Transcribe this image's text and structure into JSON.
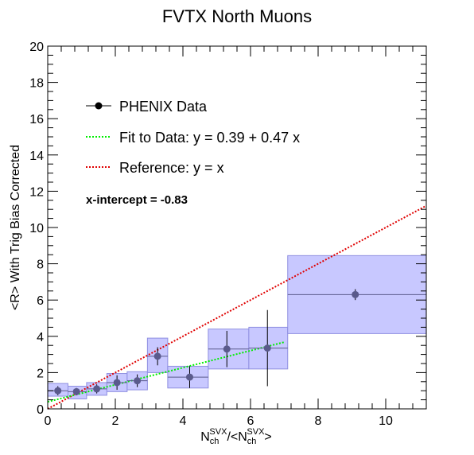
{
  "chart_data": {
    "type": "scatter",
    "title": "FVTX North Muons",
    "xlabel": {
      "main": "N",
      "sub": "ch",
      "sup": "SVX",
      "mid": "/<N",
      "sub2": "ch",
      "sup2": "SVX",
      "end": ">"
    },
    "ylabel": "<R> With Trig Bias Corrected",
    "xlim": [
      0,
      11.2
    ],
    "ylim": [
      0,
      20
    ],
    "x_ticks": [
      "0",
      "2",
      "4",
      "6",
      "8",
      "10"
    ],
    "y_ticks": [
      "0",
      "2",
      "4",
      "6",
      "8",
      "10",
      "12",
      "14",
      "16",
      "18",
      "20"
    ],
    "series": [
      {
        "name": "PHENIX Data",
        "color": "#5a5a8c",
        "points": [
          {
            "x": 0.3,
            "y": 1.0,
            "xlo": 0.0,
            "xhi": 0.6,
            "ylo": 0.7,
            "yhi": 1.4
          },
          {
            "x": 0.85,
            "y": 0.95,
            "xlo": 0.6,
            "xhi": 1.15,
            "ylo": 0.55,
            "yhi": 1.25
          },
          {
            "x": 1.45,
            "y": 1.1,
            "xlo": 1.15,
            "xhi": 1.75,
            "ylo": 0.75,
            "yhi": 1.45
          },
          {
            "x": 2.05,
            "y": 1.45,
            "xlo": 1.75,
            "xhi": 2.35,
            "ylo": 0.95,
            "yhi": 1.95
          },
          {
            "x": 2.65,
            "y": 1.55,
            "xlo": 2.35,
            "xhi": 2.95,
            "ylo": 1.05,
            "yhi": 2.05
          },
          {
            "x": 3.25,
            "y": 2.9,
            "xlo": 2.95,
            "xhi": 3.55,
            "ylo": 2.0,
            "yhi": 3.9
          },
          {
            "x": 4.2,
            "y": 1.75,
            "xlo": 3.55,
            "xhi": 4.75,
            "ylo": 1.15,
            "yhi": 2.35
          },
          {
            "x": 5.3,
            "y": 3.3,
            "xlo": 4.75,
            "xhi": 5.95,
            "ylo": 2.2,
            "yhi": 4.4
          },
          {
            "x": 6.5,
            "y": 3.35,
            "xlo": 5.95,
            "xhi": 7.1,
            "ylo": 2.2,
            "yhi": 4.5
          },
          {
            "x": 9.1,
            "y": 6.3,
            "xlo": 7.1,
            "xhi": 11.2,
            "ylo": 4.15,
            "yhi": 8.45
          }
        ]
      },
      {
        "name": "Fit to Data: y = 0.39 + 0.47 x",
        "color": "#00ee00",
        "x": [
          0.0,
          7.0
        ],
        "y": [
          0.39,
          3.68
        ]
      },
      {
        "name": "Reference: y = x",
        "color": "#e00000",
        "x": [
          0.0,
          11.2
        ],
        "y": [
          0.0,
          11.2
        ]
      }
    ],
    "annotation": "x-intercept = -0.83",
    "legend_position": "top-left",
    "grid": false,
    "box_fill": "#c8c8ff",
    "box_stroke": "#8f8fe0"
  }
}
